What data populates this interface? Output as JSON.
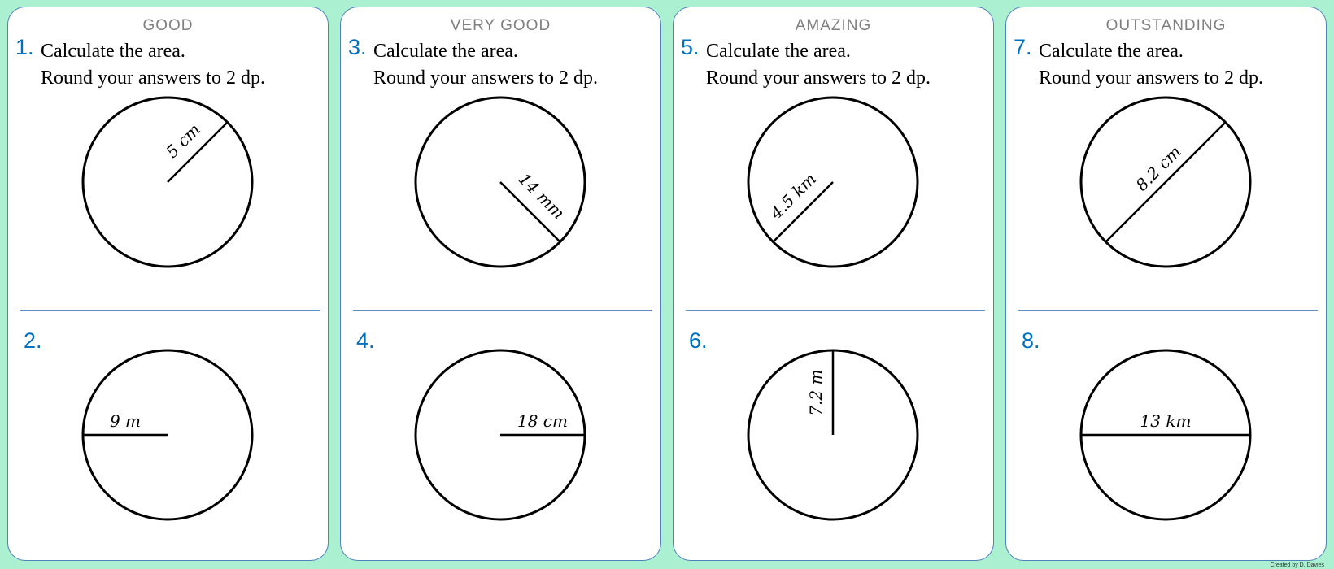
{
  "cards": [
    {
      "level": "GOOD",
      "q_top": {
        "number": "1.",
        "line1": "Calculate the area.",
        "line2": "Round your answers to 2 dp.",
        "measure": "radius",
        "label": "5 cm"
      },
      "q_bottom": {
        "number": "2.",
        "measure": "radius",
        "label": "9 m"
      }
    },
    {
      "level": "VERY GOOD",
      "q_top": {
        "number": "3.",
        "line1": "Calculate the area.",
        "line2": "Round your answers to 2 dp.",
        "measure": "radius",
        "label": "14 mm"
      },
      "q_bottom": {
        "number": "4.",
        "measure": "diameter",
        "label": "18 cm"
      }
    },
    {
      "level": "AMAZING",
      "q_top": {
        "number": "5.",
        "line1": "Calculate the area.",
        "line2": "Round your answers to 2 dp.",
        "measure": "radius",
        "label": "4.5 km"
      },
      "q_bottom": {
        "number": "6.",
        "measure": "radius",
        "label": "7.2 m"
      }
    },
    {
      "level": "OUTSTANDING",
      "q_top": {
        "number": "7.",
        "line1": "Calculate the area.",
        "line2": "Round your answers to 2 dp.",
        "measure": "diameter",
        "label": "8.2 cm"
      },
      "q_bottom": {
        "number": "8.",
        "measure": "diameter",
        "label": "13 km"
      }
    }
  ],
  "credit": "Created by D. Davies",
  "colors": {
    "background": "#aaf0d1",
    "number": "#0070c0",
    "border": "#4f81bd"
  }
}
